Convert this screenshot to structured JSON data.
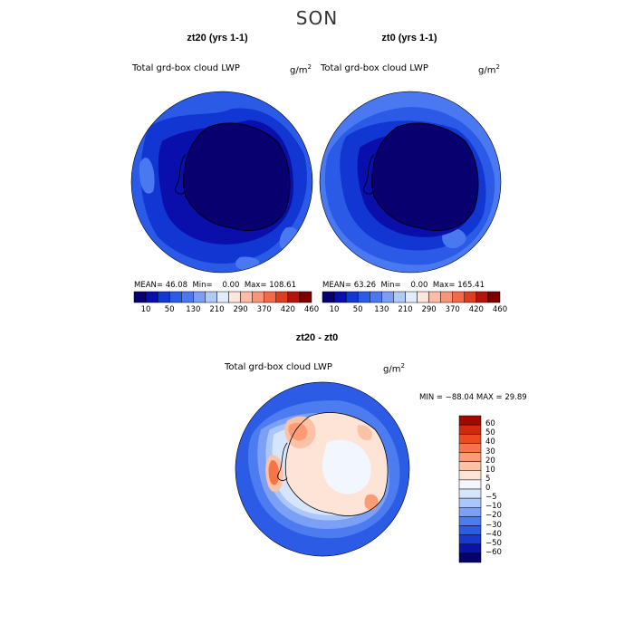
{
  "suptitle": "SON",
  "colors": {
    "abs": [
      "#08006e",
      "#0a0eaa",
      "#1236d2",
      "#2a5ae6",
      "#4a78f0",
      "#7c9ef6",
      "#b0c8fa",
      "#e2ecfc",
      "#fde6dc",
      "#fcbca6",
      "#fa9478",
      "#f26a48",
      "#de3e20",
      "#b4140a",
      "#7a0000"
    ],
    "diff": [
      "#07006a",
      "#0c12a8",
      "#1838d0",
      "#2c5ce6",
      "#4c7cf0",
      "#7ca0f6",
      "#aac6fa",
      "#d6e4fc",
      "#f2f6fe",
      "#fde4d6",
      "#fcc2a6",
      "#fb9c76",
      "#f57448",
      "#ec4a22",
      "#d02a0c",
      "#a00800"
    ]
  },
  "panels": [
    {
      "title": "zt20 (yrs 1-1)",
      "variable": "Total grd-box cloud LWP",
      "units": "g/m",
      "units_exp": "2",
      "stats": {
        "mean_label": "MEAN=",
        "mean": "46.08",
        "min_label": "Min=",
        "min": "0.00",
        "max_label": "Max=",
        "max": "108.61"
      }
    },
    {
      "title": "zt0 (yrs 1-1)",
      "variable": "Total grd-box cloud LWP",
      "units": "g/m",
      "units_exp": "2",
      "stats": {
        "mean_label": "MEAN=",
        "mean": "63.26",
        "min_label": "Min=",
        "min": "0.00",
        "max_label": "Max=",
        "max": "165.41"
      }
    }
  ],
  "abs_ticks": [
    "10",
    "50",
    "130",
    "210",
    "290",
    "370",
    "420",
    "460"
  ],
  "diff_panel": {
    "title": "zt20 - zt0",
    "variable": "Total grd-box cloud LWP",
    "units": "g/m",
    "units_exp": "2",
    "minmax": "MIN = −88.04 MAX =  29.89",
    "ticks": [
      "60",
      "50",
      "40",
      "30",
      "20",
      "10",
      "5",
      "0",
      "−5",
      "−10",
      "−20",
      "−30",
      "−40",
      "−50",
      "−60"
    ]
  }
}
